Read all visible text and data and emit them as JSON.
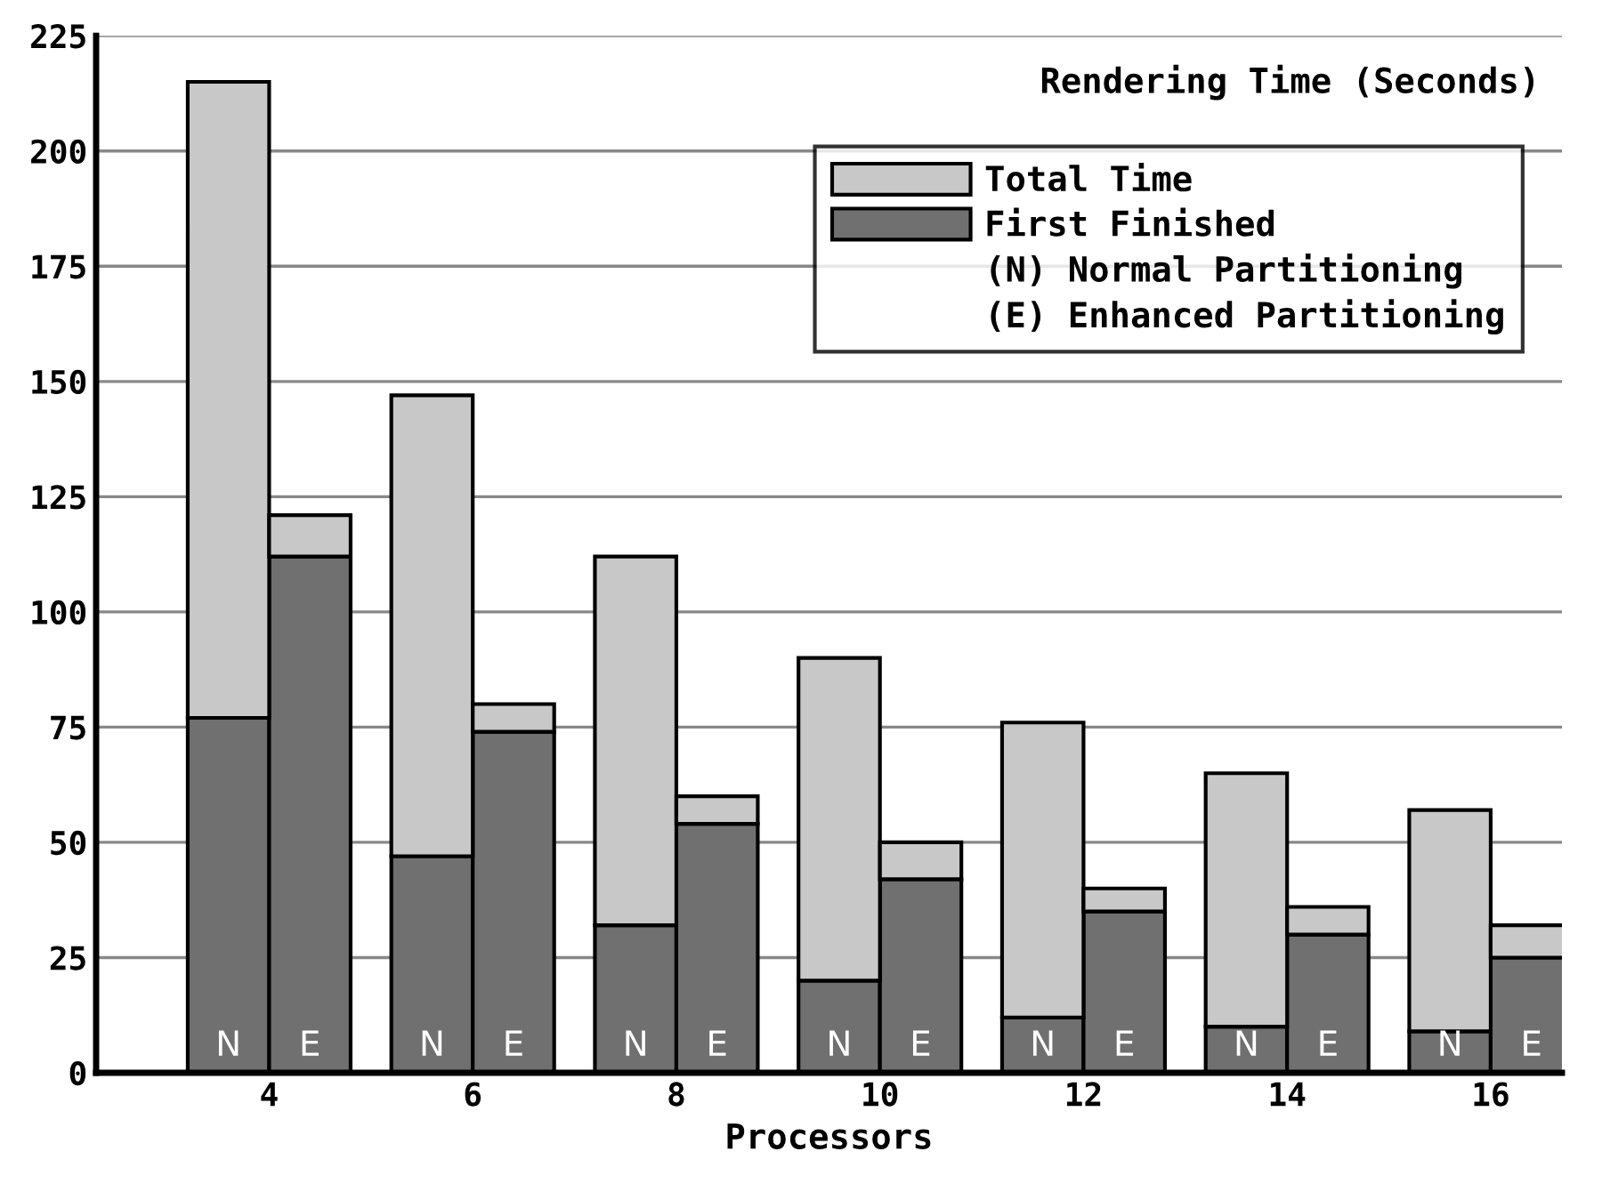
{
  "chart_data": {
    "type": "bar",
    "stacked": true,
    "title": "Rendering Time (Seconds)",
    "xlabel": "Processors",
    "xlim": [
      2.3,
      16.7
    ],
    "xticks": [
      4,
      6,
      8,
      10,
      12,
      14,
      16
    ],
    "ylim": [
      0,
      225
    ],
    "yticks": [
      0,
      25,
      50,
      75,
      100,
      125,
      150,
      175,
      200,
      225
    ],
    "grid": "y",
    "legend": "top right",
    "series": [
      {
        "name": "First Finished",
        "color": "#707070",
        "x": [
          3.6,
          4.4,
          5.6,
          6.4,
          7.6,
          8.4,
          9.6,
          10.4,
          11.6,
          12.4,
          13.6,
          14.4,
          15.6,
          16.4
        ],
        "values": [
          77,
          112,
          47,
          74,
          32,
          54,
          20,
          42,
          12,
          35,
          10,
          30,
          9,
          25
        ],
        "value_labels": [
          "N",
          "E",
          "N",
          "E",
          "N",
          "E",
          "N",
          "E",
          "N",
          "E",
          "N",
          "E",
          "N",
          "E"
        ]
      },
      {
        "name": "Total Time",
        "color": "#c8c8c8",
        "x": [
          3.6,
          4.4,
          5.6,
          6.4,
          7.6,
          8.4,
          9.6,
          10.4,
          11.6,
          12.4,
          13.6,
          14.4,
          15.6,
          16.4
        ],
        "values": [
          138,
          9,
          100,
          6,
          80,
          6,
          70,
          8,
          64,
          5,
          55,
          6,
          48,
          7
        ]
      }
    ],
    "annotations": [
      "(N) Normal Partitioning",
      "(E) Enhanced Partitioning"
    ]
  }
}
